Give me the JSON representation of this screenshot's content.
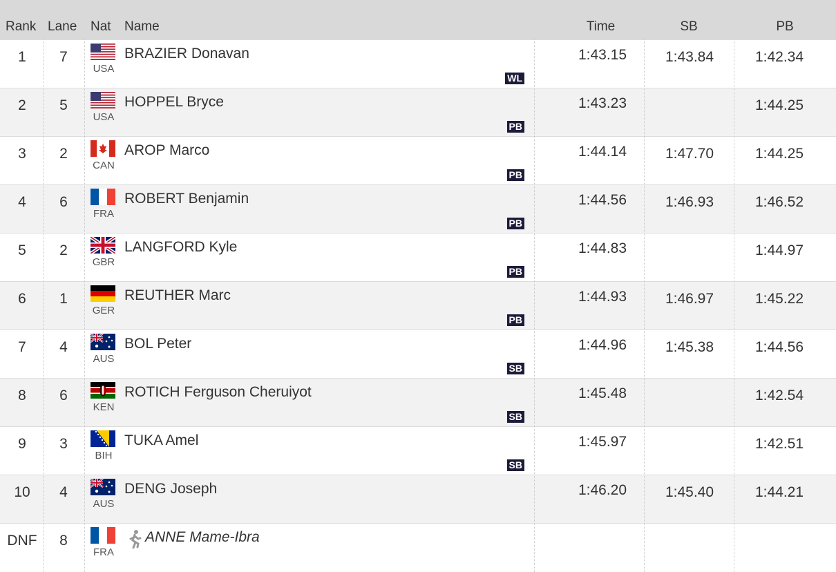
{
  "header": {
    "rank": "Rank",
    "lane": "Lane",
    "nat": "Nat",
    "name": "Name",
    "time": "Time",
    "sb": "SB",
    "pb": "PB"
  },
  "rows": [
    {
      "rank": "1",
      "lane": "7",
      "nat": "USA",
      "name": "BRAZIER Donavan",
      "time": "1:43.15",
      "sb": "1:43.84",
      "pb": "1:42.34",
      "record": "WL"
    },
    {
      "rank": "2",
      "lane": "5",
      "nat": "USA",
      "name": "HOPPEL Bryce",
      "time": "1:43.23",
      "pb": "1:44.25",
      "record": "PB"
    },
    {
      "rank": "3",
      "lane": "2",
      "nat": "CAN",
      "name": "AROP Marco",
      "time": "1:44.14",
      "sb": "1:47.70",
      "pb": "1:44.25",
      "record": "PB"
    },
    {
      "rank": "4",
      "lane": "6",
      "nat": "FRA",
      "name": "ROBERT Benjamin",
      "time": "1:44.56",
      "sb": "1:46.93",
      "pb": "1:46.52",
      "record": "PB"
    },
    {
      "rank": "5",
      "lane": "2",
      "nat": "GBR",
      "name": "LANGFORD Kyle",
      "time": "1:44.83",
      "pb": "1:44.97",
      "record": "PB"
    },
    {
      "rank": "6",
      "lane": "1",
      "nat": "GER",
      "name": "REUTHER Marc",
      "time": "1:44.93",
      "sb": "1:46.97",
      "pb": "1:45.22",
      "record": "PB"
    },
    {
      "rank": "7",
      "lane": "4",
      "nat": "AUS",
      "name": "BOL Peter",
      "time": "1:44.96",
      "sb": "1:45.38",
      "pb": "1:44.56",
      "record": "SB"
    },
    {
      "rank": "8",
      "lane": "6",
      "nat": "KEN",
      "name": "ROTICH Ferguson Cheruiyot",
      "time": "1:45.48",
      "pb": "1:42.54",
      "record": "SB"
    },
    {
      "rank": "9",
      "lane": "3",
      "nat": "BIH",
      "name": "TUKA Amel",
      "time": "1:45.97",
      "pb": "1:42.51",
      "record": "SB"
    },
    {
      "rank": "10",
      "lane": "4",
      "nat": "AUS",
      "name": "DENG Joseph",
      "time": "1:46.20",
      "sb": "1:45.40",
      "pb": "1:44.21"
    },
    {
      "rank": "DNF",
      "lane": "8",
      "nat": "FRA",
      "name": "ANNE Mame-Ibra"
    }
  ]
}
